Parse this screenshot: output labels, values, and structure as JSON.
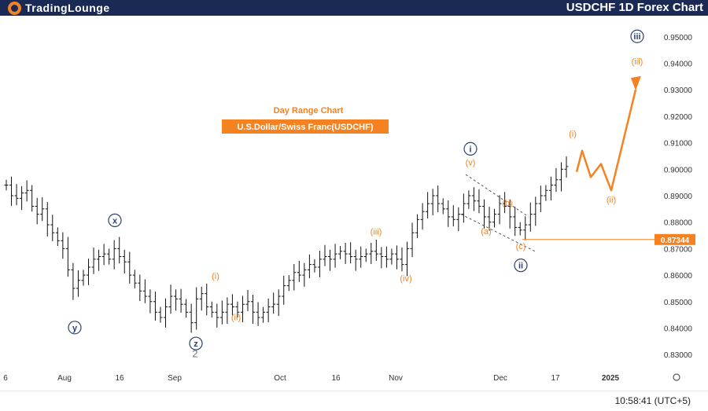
{
  "header": {
    "brand": "TradingLounge",
    "title": "USDCHF 1D Forex Chart"
  },
  "status": {
    "clock": "10:58:41 (UTC+5)"
  },
  "chart_data": {
    "type": "ohlc",
    "subtitle": "Day Range Chart",
    "instrument_label": "U.S.Dollar/Swiss Franc(USDCHF)",
    "y_ticks": [
      "0.95000",
      "0.94000",
      "0.93000",
      "0.92000",
      "0.91000",
      "0.90000",
      "0.89000",
      "0.88000",
      "0.87000",
      "0.86000",
      "0.85000",
      "0.84000",
      "0.83000"
    ],
    "ylim": [
      0.825,
      0.955
    ],
    "x_ticks": [
      "6",
      "Aug",
      "16",
      "Sep",
      "Oct",
      "16",
      "Nov",
      "Dec",
      "17",
      "2025"
    ],
    "current_price": "0.87344",
    "colors": {
      "wave_orange": "#f58220",
      "wave_navy": "#2f3f6e",
      "candles": "#111111",
      "price_line": "#f58220"
    },
    "closes": [
      0.894,
      0.89,
      0.889,
      0.891,
      0.892,
      0.886,
      0.883,
      0.885,
      0.879,
      0.876,
      0.873,
      0.87,
      0.862,
      0.855,
      0.858,
      0.86,
      0.863,
      0.866,
      0.867,
      0.868,
      0.866,
      0.87,
      0.867,
      0.865,
      0.86,
      0.857,
      0.854,
      0.852,
      0.85,
      0.846,
      0.844,
      0.848,
      0.852,
      0.851,
      0.849,
      0.846,
      0.842,
      0.851,
      0.853,
      0.848,
      0.846,
      0.844,
      0.846,
      0.849,
      0.848,
      0.846,
      0.849,
      0.85,
      0.846,
      0.844,
      0.846,
      0.848,
      0.849,
      0.852,
      0.856,
      0.858,
      0.861,
      0.86,
      0.862,
      0.864,
      0.863,
      0.866,
      0.867,
      0.866,
      0.868,
      0.869,
      0.868,
      0.867,
      0.866,
      0.867,
      0.868,
      0.869,
      0.868,
      0.867,
      0.866,
      0.868,
      0.866,
      0.864,
      0.87,
      0.876,
      0.881,
      0.884,
      0.887,
      0.89,
      0.887,
      0.885,
      0.882,
      0.881,
      0.883,
      0.887,
      0.89,
      0.888,
      0.886,
      0.882,
      0.88,
      0.883,
      0.887,
      0.886,
      0.882,
      0.878,
      0.877,
      0.879,
      0.883,
      0.887,
      0.89,
      0.892,
      0.894,
      0.896,
      0.9,
      0.901
    ],
    "series": [
      {
        "labels": [
          "(v)",
          "(b)",
          "(a)",
          "(c)",
          "(iii)",
          "(i)",
          "(ii)",
          "(iv)",
          "(i)",
          "(ii)",
          "(iii)"
        ]
      },
      {
        "labels": [
          "x",
          "y",
          "z",
          "2",
          "i",
          "ii",
          "iii"
        ]
      }
    ]
  }
}
